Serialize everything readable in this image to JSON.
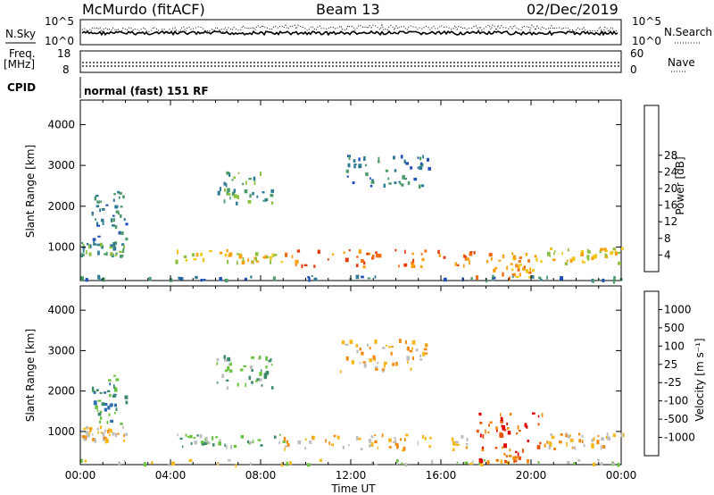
{
  "header": {
    "station": "McMurdo (fitACF)",
    "beam": "Beam 13",
    "date": "02/Dec/2019"
  },
  "noise_panel": {
    "left_label": "N.Sky",
    "right_label": "N.Search",
    "left_ticks": [
      "10^5",
      "10^0"
    ],
    "right_ticks": [
      "10^5",
      "10^0"
    ]
  },
  "freq_panel": {
    "left_label_1": "Freq.",
    "left_label_2": "[MHz]",
    "right_label": "Nave",
    "left_ticks": [
      "18",
      "8"
    ],
    "right_ticks": [
      "60",
      "0"
    ]
  },
  "cpid": {
    "label": "CPID",
    "value": "normal (fast) 151 RF"
  },
  "chart_data": [
    {
      "type": "heatmap",
      "name": "power",
      "ylabel": "Slant Range [km]",
      "xlabel": "",
      "y_ticks": [
        "1000",
        "2000",
        "3000",
        "4000"
      ],
      "ylim": [
        180,
        4600
      ],
      "xlim": [
        0,
        24
      ],
      "colorbar": {
        "label": "Power [dB]",
        "ticks": [
          "4",
          "8",
          "12",
          "16",
          "20",
          "24",
          "28"
        ],
        "colors": [
          "#0000ff",
          "#1f4fb8",
          "#2e7c94",
          "#4b9a6a",
          "#8bbf3a",
          "#f0c814",
          "#f9a10f",
          "#f26d0c",
          "#e23a0a",
          "#d80000"
        ]
      },
      "bands": [
        {
          "time_start": 0.0,
          "time_end": 24.0,
          "range_start": 200,
          "range_end": 320,
          "level": 2
        },
        {
          "time_start": 0.0,
          "time_end": 2.0,
          "range_start": 800,
          "range_end": 1150,
          "level": 3
        },
        {
          "time_start": 4.2,
          "time_end": 9.0,
          "range_start": 650,
          "range_end": 950,
          "level": 5
        },
        {
          "time_start": 9.0,
          "time_end": 17.5,
          "range_start": 550,
          "range_end": 950,
          "level": 7
        },
        {
          "time_start": 17.5,
          "time_end": 20.5,
          "range_start": 280,
          "range_end": 900,
          "level": 6
        },
        {
          "time_start": 20.5,
          "time_end": 24.0,
          "range_start": 600,
          "range_end": 1000,
          "level": 5
        },
        {
          "time_start": 6.0,
          "time_end": 8.5,
          "range_start": 2100,
          "range_end": 2900,
          "level": 3
        },
        {
          "time_start": 11.5,
          "time_end": 15.5,
          "range_start": 2500,
          "range_end": 3300,
          "level": 2
        },
        {
          "time_start": 0.5,
          "time_end": 2.0,
          "range_start": 1200,
          "range_end": 2400,
          "level": 2
        }
      ]
    },
    {
      "type": "heatmap",
      "name": "velocity",
      "ylabel": "Slant Range [km]",
      "xlabel": "Time UT",
      "x_ticks": [
        "00:00",
        "04:00",
        "08:00",
        "12:00",
        "16:00",
        "20:00",
        "00:00"
      ],
      "y_ticks": [
        "1000",
        "2000",
        "3000",
        "4000"
      ],
      "ylim": [
        180,
        4600
      ],
      "xlim": [
        0,
        24
      ],
      "colorbar": {
        "label": "Velocity [m s⁻¹]",
        "ticks": [
          "1000",
          "500",
          "100",
          "25",
          "-25",
          "-100",
          "-500",
          "-1000"
        ],
        "colors": [
          "#1846c8",
          "#2f6fb0",
          "#3a8a6a",
          "#66c23a",
          "#bebebe",
          "#f6b81a",
          "#f28a10",
          "#e8560c",
          "#e00000"
        ]
      },
      "bands": [
        {
          "time_start": 0.0,
          "time_end": 24.0,
          "range_start": 200,
          "range_end": 320,
          "level": 4
        },
        {
          "time_start": 0.0,
          "time_end": 2.0,
          "range_start": 800,
          "range_end": 1150,
          "level": 5
        },
        {
          "time_start": 4.2,
          "time_end": 9.0,
          "range_start": 650,
          "range_end": 950,
          "level": 3
        },
        {
          "time_start": 9.0,
          "time_end": 17.5,
          "range_start": 550,
          "range_end": 950,
          "level": 5
        },
        {
          "time_start": 17.5,
          "time_end": 20.5,
          "range_start": 280,
          "range_end": 1500,
          "level": 7
        },
        {
          "time_start": 20.5,
          "time_end": 24.0,
          "range_start": 600,
          "range_end": 1000,
          "level": 5
        },
        {
          "time_start": 6.0,
          "time_end": 8.5,
          "range_start": 2100,
          "range_end": 2900,
          "level": 3
        },
        {
          "time_start": 11.5,
          "time_end": 15.5,
          "range_start": 2500,
          "range_end": 3300,
          "level": 5
        },
        {
          "time_start": 0.5,
          "time_end": 2.0,
          "range_start": 1200,
          "range_end": 2400,
          "level": 2
        }
      ]
    }
  ]
}
